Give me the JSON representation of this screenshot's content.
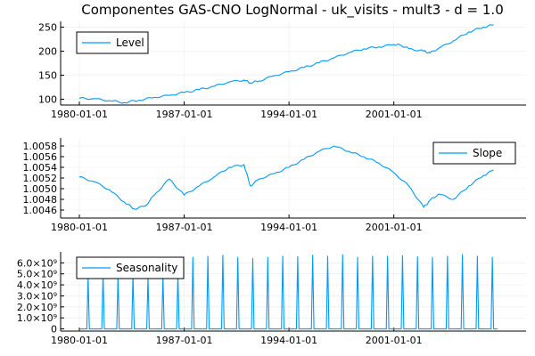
{
  "title": "Componentes GAS-CNO LogNormal - uk_visits - mult3 - d = 1.0",
  "colors": {
    "series": "#009AFA",
    "axis": "#000000"
  },
  "chart_data": [
    {
      "type": "line",
      "xaxis": "date",
      "xlim": [
        "1978-10-01",
        "2009-11-01"
      ],
      "ylim": [
        88,
        262
      ],
      "grid": true,
      "legend_position": "top-left",
      "x_ticks": [
        "1980-01-01",
        "1987-01-01",
        "1994-01-01",
        "2001-01-01"
      ],
      "y_ticks": [
        {
          "value": 100,
          "label": "100"
        },
        {
          "value": 150,
          "label": "150"
        },
        {
          "value": 200,
          "label": "200"
        },
        {
          "value": 250,
          "label": "250"
        }
      ],
      "series": [
        {
          "name": "Level",
          "points": [
            [
              "1980-01-01",
              102
            ],
            [
              "1981-01-01",
              101
            ],
            [
              "1982-01-01",
              97
            ],
            [
              "1983-01-01",
              93
            ],
            [
              "1984-01-01",
              98
            ],
            [
              "1985-01-01",
              104
            ],
            [
              "1986-01-01",
              108
            ],
            [
              "1987-01-01",
              114
            ],
            [
              "1988-01-01",
              120
            ],
            [
              "1989-01-01",
              127
            ],
            [
              "1990-01-01",
              136
            ],
            [
              "1991-01-01",
              140
            ],
            [
              "1991-06-01",
              134
            ],
            [
              "1992-01-01",
              138
            ],
            [
              "1993-01-01",
              149
            ],
            [
              "1994-01-01",
              157
            ],
            [
              "1995-01-01",
              166
            ],
            [
              "1996-01-01",
              176
            ],
            [
              "1997-01-01",
              186
            ],
            [
              "1998-01-01",
              197
            ],
            [
              "1999-01-01",
              205
            ],
            [
              "2000-01-01",
              209
            ],
            [
              "2001-01-01",
              214
            ],
            [
              "2001-06-01",
              213
            ],
            [
              "2002-01-01",
              205
            ],
            [
              "2003-01-01",
              200
            ],
            [
              "2003-06-01",
              196
            ],
            [
              "2004-01-01",
              206
            ],
            [
              "2005-01-01",
              222
            ],
            [
              "2006-01-01",
              240
            ],
            [
              "2007-01-01",
              250
            ],
            [
              "2007-09-01",
              255
            ]
          ]
        }
      ]
    },
    {
      "type": "line",
      "xaxis": "date",
      "xlim": [
        "1978-10-01",
        "2009-11-01"
      ],
      "ylim": [
        1.00445,
        1.00595
      ],
      "grid": true,
      "legend_position": "top-right",
      "x_ticks": [
        "1980-01-01",
        "1987-01-01",
        "1994-01-01",
        "2001-01-01"
      ],
      "y_ticks": [
        {
          "value": 1.0046,
          "label": "1.0046"
        },
        {
          "value": 1.0048,
          "label": "1.0048"
        },
        {
          "value": 1.005,
          "label": "1.0050"
        },
        {
          "value": 1.0052,
          "label": "1.0052"
        },
        {
          "value": 1.0054,
          "label": "1.0054"
        },
        {
          "value": 1.0056,
          "label": "1.0056"
        },
        {
          "value": 1.0058,
          "label": "1.0058"
        }
      ],
      "series": [
        {
          "name": "Slope",
          "points": [
            [
              "1980-01-01",
              1.00522
            ],
            [
              "1981-01-01",
              1.00513
            ],
            [
              "1982-01-01",
              1.00498
            ],
            [
              "1983-01-01",
              1.00475
            ],
            [
              "1983-09-01",
              1.00462
            ],
            [
              "1984-06-01",
              1.00468
            ],
            [
              "1985-01-01",
              1.00488
            ],
            [
              "1986-01-01",
              1.00518
            ],
            [
              "1987-01-01",
              1.00488
            ],
            [
              "1988-01-01",
              1.00505
            ],
            [
              "1989-01-01",
              1.00522
            ],
            [
              "1990-01-01",
              1.0054
            ],
            [
              "1991-01-01",
              1.00545
            ],
            [
              "1991-06-01",
              1.00505
            ],
            [
              "1992-01-01",
              1.00518
            ],
            [
              "1993-01-01",
              1.00528
            ],
            [
              "1994-01-01",
              1.0054
            ],
            [
              "1995-01-01",
              1.00555
            ],
            [
              "1996-01-01",
              1.0057
            ],
            [
              "1997-01-01",
              1.0058
            ],
            [
              "1998-01-01",
              1.0057
            ],
            [
              "1999-01-01",
              1.0056
            ],
            [
              "2000-01-01",
              1.00548
            ],
            [
              "2001-01-01",
              1.0053
            ],
            [
              "2002-01-01",
              1.00505
            ],
            [
              "2003-01-01",
              1.00465
            ],
            [
              "2003-06-01",
              1.00478
            ],
            [
              "2004-01-01",
              1.0049
            ],
            [
              "2005-01-01",
              1.0048
            ],
            [
              "2006-01-01",
              1.00505
            ],
            [
              "2007-01-01",
              1.00525
            ],
            [
              "2007-09-01",
              1.00535
            ]
          ]
        }
      ]
    },
    {
      "type": "line",
      "xaxis": "date",
      "xlim": [
        "1978-10-01",
        "2009-11-01"
      ],
      "ylim": [
        -200000000,
        7000000000
      ],
      "grid": true,
      "legend_position": "top-left",
      "x_ticks": [
        "1980-01-01",
        "1987-01-01",
        "1994-01-01",
        "2001-01-01"
      ],
      "y_ticks": [
        {
          "value": 0,
          "label": "0"
        },
        {
          "value": 1000000000,
          "label": "1.0×10⁹"
        },
        {
          "value": 2000000000,
          "label": "2.0×10⁹"
        },
        {
          "value": 3000000000,
          "label": "3.0×10⁹"
        },
        {
          "value": 4000000000,
          "label": "4.0×10⁹"
        },
        {
          "value": 5000000000,
          "label": "5.0×10⁹"
        },
        {
          "value": 6000000000,
          "label": "6.0×10⁹"
        }
      ],
      "series": [
        {
          "name": "Seasonality",
          "spike_month": 8,
          "spike_years": [
            1980,
            1981,
            1982,
            1983,
            1984,
            1985,
            1986,
            1987,
            1988,
            1989,
            1990,
            1991,
            1992,
            1993,
            1994,
            1995,
            1996,
            1997,
            1998,
            1999,
            2000,
            2001,
            2002,
            2003,
            2004,
            2005,
            2006,
            2007
          ],
          "spike_peaks": [
            4800000000,
            5000000000,
            4900000000,
            4900000000,
            4700000000,
            4800000000,
            5000000000,
            6500000000,
            6600000000,
            6700000000,
            6500000000,
            6400000000,
            6500000000,
            6600000000,
            6550000000,
            6700000000,
            6600000000,
            6750000000,
            6500000000,
            6600000000,
            6600000000,
            6650000000,
            6550000000,
            6500000000,
            6600000000,
            6750000000,
            6600000000,
            6500000000
          ]
        }
      ]
    }
  ]
}
